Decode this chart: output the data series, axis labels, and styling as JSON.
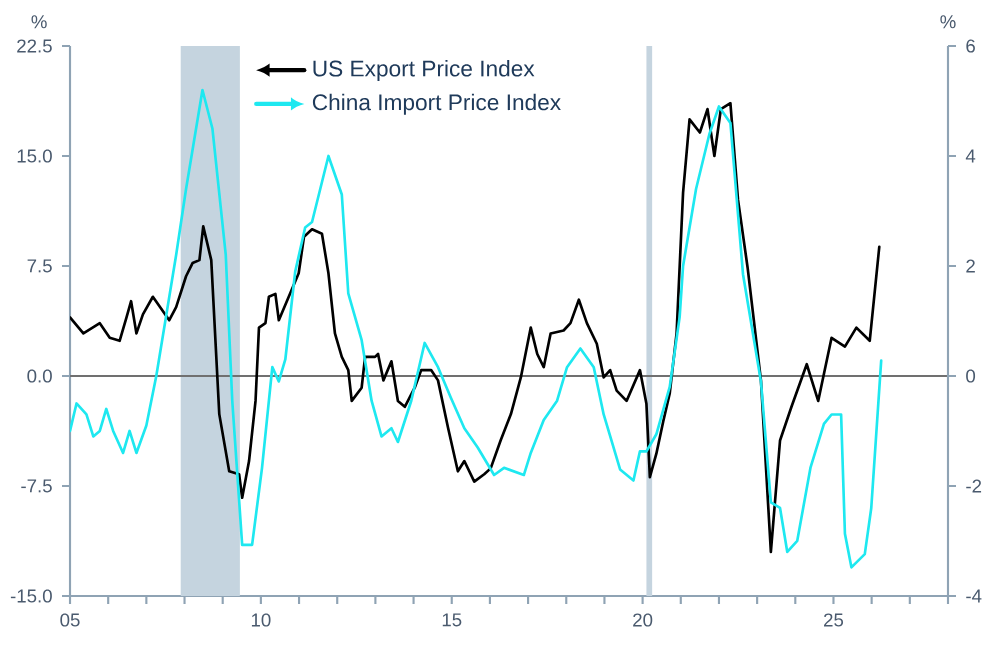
{
  "chart_data": {
    "type": "line",
    "ylabel": "%",
    "y2label": "%",
    "legend": "top",
    "xlim": [
      2005,
      2028
    ],
    "xticks": [
      {
        "value": 2005,
        "label": "05"
      },
      {
        "value": 2006,
        "label": null
      },
      {
        "value": 2007,
        "label": null
      },
      {
        "value": 2008,
        "label": null
      },
      {
        "value": 2009,
        "label": null
      },
      {
        "value": 2010,
        "label": "10"
      },
      {
        "value": 2011,
        "label": null
      },
      {
        "value": 2012,
        "label": null
      },
      {
        "value": 2013,
        "label": null
      },
      {
        "value": 2014,
        "label": null
      },
      {
        "value": 2015,
        "label": "15"
      },
      {
        "value": 2016,
        "label": null
      },
      {
        "value": 2017,
        "label": null
      },
      {
        "value": 2018,
        "label": null
      },
      {
        "value": 2019,
        "label": null
      },
      {
        "value": 2020,
        "label": "20"
      },
      {
        "value": 2021,
        "label": null
      },
      {
        "value": 2022,
        "label": null
      },
      {
        "value": 2023,
        "label": null
      },
      {
        "value": 2024,
        "label": null
      },
      {
        "value": 2025,
        "label": "25"
      },
      {
        "value": 2026,
        "label": null
      },
      {
        "value": 2027,
        "label": null
      },
      {
        "value": 2028,
        "label": null
      }
    ],
    "ylim": [
      -15,
      22.5
    ],
    "yticks": [
      {
        "value": -15,
        "label": "-15.0"
      },
      {
        "value": -7.5,
        "label": "-7.5"
      },
      {
        "value": 0,
        "label": "0.0"
      },
      {
        "value": 7.5,
        "label": "7.5"
      },
      {
        "value": 15,
        "label": "15.0"
      },
      {
        "value": 22.5,
        "label": "22.5"
      }
    ],
    "y2lim": [
      -4,
      6
    ],
    "y2ticks": [
      -4,
      -2,
      0,
      2,
      4,
      6
    ],
    "bands": [
      {
        "axis": "x",
        "from": 2007.9,
        "to": 2009.45,
        "color": "#c5d4df"
      },
      {
        "axis": "x",
        "from": 2020.1,
        "to": 2020.25,
        "color": "#c5d4df"
      }
    ],
    "ref_lines": [
      {
        "axis": "y",
        "value": 0,
        "color": "#707070"
      }
    ],
    "series": [
      {
        "name": "US Export Price Index",
        "color": "#000000",
        "axis": "y",
        "x": [
          2005.0,
          2005.35,
          2005.78,
          2006.04,
          2006.3,
          2006.48,
          2006.6,
          2006.74,
          2006.91,
          2007.17,
          2007.6,
          2007.78,
          2008.04,
          2008.21,
          2008.39,
          2008.49,
          2008.7,
          2008.91,
          2009.17,
          2009.43,
          2009.51,
          2009.69,
          2009.86,
          2009.95,
          2010.12,
          2010.21,
          2010.38,
          2010.47,
          2010.73,
          2010.99,
          2011.13,
          2011.34,
          2011.6,
          2011.77,
          2011.94,
          2012.12,
          2012.29,
          2012.38,
          2012.64,
          2012.73,
          2012.99,
          2013.07,
          2013.21,
          2013.42,
          2013.59,
          2013.77,
          2014.03,
          2014.2,
          2014.46,
          2014.64,
          2014.9,
          2015.16,
          2015.33,
          2015.59,
          2015.85,
          2016.02,
          2016.28,
          2016.55,
          2016.81,
          2017.07,
          2017.24,
          2017.41,
          2017.59,
          2017.93,
          2018.11,
          2018.33,
          2018.54,
          2018.8,
          2018.98,
          2019.15,
          2019.32,
          2019.58,
          2019.93,
          2020.1,
          2020.19,
          2020.36,
          2020.54,
          2020.71,
          2020.89,
          2021.06,
          2021.23,
          2021.5,
          2021.7,
          2021.88,
          2022.05,
          2022.3,
          2022.5,
          2022.75,
          2023.1,
          2023.36,
          2023.6,
          2023.9,
          2024.3,
          2024.6,
          2024.95,
          2025.3,
          2025.6,
          2025.95,
          2026.2
        ],
        "values": [
          4.0,
          2.9,
          3.6,
          2.6,
          2.4,
          4.0,
          5.1,
          2.9,
          4.2,
          5.4,
          3.8,
          4.7,
          6.8,
          7.7,
          7.9,
          10.2,
          7.9,
          -2.6,
          -6.5,
          -6.7,
          -8.3,
          -5.8,
          -1.7,
          3.3,
          3.6,
          5.4,
          5.6,
          3.8,
          5.4,
          7.0,
          9.5,
          10.0,
          9.7,
          7.0,
          2.9,
          1.3,
          0.4,
          -1.7,
          -0.8,
          1.3,
          1.3,
          1.5,
          -0.3,
          1.0,
          -1.7,
          -2.1,
          -0.8,
          0.4,
          0.4,
          -0.3,
          -3.5,
          -6.5,
          -5.8,
          -7.2,
          -6.7,
          -6.3,
          -4.4,
          -2.6,
          -0.1,
          3.3,
          1.5,
          0.6,
          2.9,
          3.1,
          3.6,
          5.2,
          3.6,
          2.2,
          -0.1,
          0.4,
          -1.0,
          -1.7,
          0.4,
          -1.9,
          -6.9,
          -5.3,
          -3.1,
          -1.2,
          2.9,
          12.5,
          17.5,
          16.6,
          18.2,
          15.0,
          18.2,
          18.6,
          12.0,
          7.4,
          -0.3,
          -12.0,
          -4.4,
          -2.1,
          0.8,
          -1.7,
          2.6,
          2.0,
          3.3,
          2.4,
          8.8
        ]
      },
      {
        "name": "China Import Price Index",
        "color": "#1ee8f0",
        "axis": "y2",
        "x": [
          2005.0,
          2005.17,
          2005.43,
          2005.61,
          2005.78,
          2005.95,
          2006.13,
          2006.39,
          2006.56,
          2006.74,
          2007.0,
          2007.26,
          2007.52,
          2007.78,
          2008.04,
          2008.47,
          2008.73,
          2009.08,
          2009.25,
          2009.51,
          2009.77,
          2010.03,
          2010.3,
          2010.47,
          2010.64,
          2010.9,
          2011.16,
          2011.34,
          2011.77,
          2012.12,
          2012.29,
          2012.64,
          2012.9,
          2013.16,
          2013.42,
          2013.59,
          2013.94,
          2014.29,
          2014.64,
          2014.98,
          2015.33,
          2015.68,
          2016.11,
          2016.37,
          2016.89,
          2017.07,
          2017.41,
          2017.76,
          2018.02,
          2018.37,
          2018.72,
          2018.98,
          2019.41,
          2019.76,
          2019.93,
          2020.1,
          2020.36,
          2020.71,
          2020.97,
          2021.06,
          2021.4,
          2021.75,
          2022.0,
          2022.3,
          2022.63,
          2023.1,
          2023.36,
          2023.6,
          2023.79,
          2024.05,
          2024.4,
          2024.75,
          2024.95,
          2025.2,
          2025.3,
          2025.47,
          2025.82,
          2025.99,
          2026.25
        ],
        "values": [
          -1.0,
          -0.5,
          -0.7,
          -1.1,
          -1.0,
          -0.6,
          -1.0,
          -1.4,
          -1.0,
          -1.4,
          -0.9,
          0.0,
          1.1,
          2.2,
          3.4,
          5.2,
          4.5,
          2.2,
          -0.45,
          -3.07,
          -3.07,
          -1.67,
          0.16,
          -0.1,
          0.3,
          1.9,
          2.7,
          2.8,
          4.0,
          3.3,
          1.5,
          0.65,
          -0.45,
          -1.1,
          -0.95,
          -1.2,
          -0.45,
          0.6,
          0.16,
          -0.4,
          -0.95,
          -1.3,
          -1.8,
          -1.67,
          -1.8,
          -1.4,
          -0.8,
          -0.45,
          0.16,
          0.5,
          0.16,
          -0.7,
          -1.7,
          -1.9,
          -1.37,
          -1.37,
          -1.06,
          -0.2,
          1.07,
          2.0,
          3.4,
          4.4,
          4.9,
          4.6,
          1.85,
          -0.1,
          -2.3,
          -2.4,
          -3.2,
          -3.0,
          -1.66,
          -0.87,
          -0.7,
          -0.7,
          -2.87,
          -3.48,
          -3.24,
          -2.4,
          0.28
        ]
      }
    ]
  }
}
